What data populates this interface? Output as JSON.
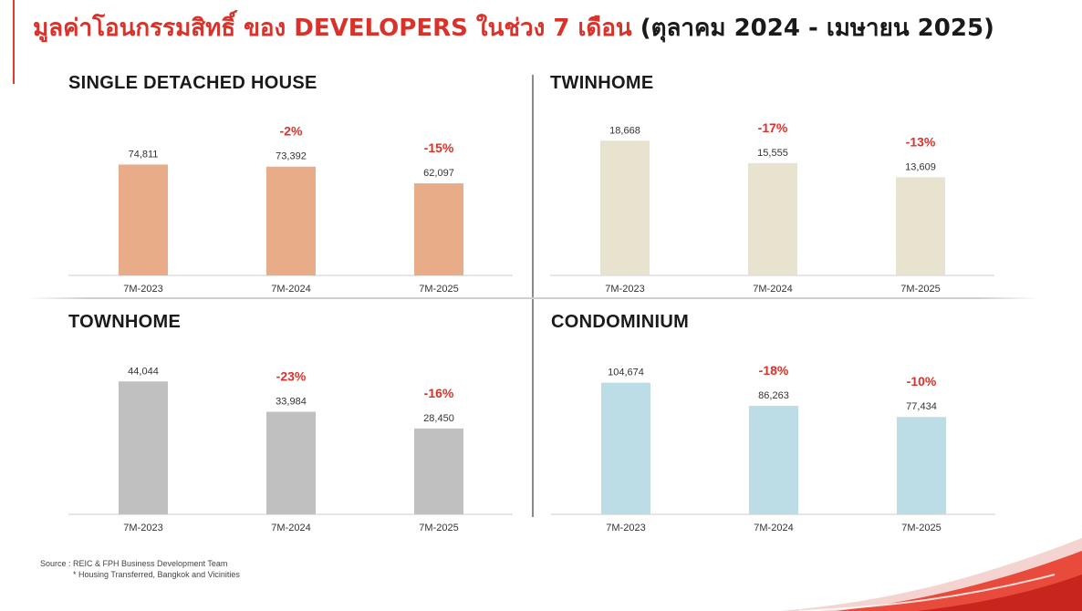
{
  "page": {
    "title_red": "มูลค่าโอนกรรมสิทธิ์ ของ DEVELOPERS ในช่วง 7 เดือน",
    "title_dark": "(ตุลาคม 2024 - เมษายน 2025)"
  },
  "source": {
    "line1": "Source : REIC & FPH Business Development Team",
    "line2": "* Housing Transferred, Bangkok and Vicinities"
  },
  "colors": {
    "accent": "#d9322a",
    "single_detached": "#e8ac89",
    "twinhome": "#e7e3cf",
    "townhome": "#c0c0c0",
    "condominium": "#bddde6"
  },
  "chart_data": [
    {
      "type": "bar",
      "title": "SINGLE DETACHED HOUSE",
      "categories": [
        "7M-2023",
        "7M-2024",
        "7M-2025"
      ],
      "values": [
        74811,
        73392,
        62097
      ],
      "value_labels": [
        "74,811",
        "73,392",
        "62,097"
      ],
      "change_labels": [
        "",
        "-2%",
        "-15%"
      ],
      "color": "#e8ac89",
      "ylim": [
        0,
        112000
      ],
      "xlabel": "",
      "ylabel": "",
      "grid": false
    },
    {
      "type": "bar",
      "title": "TWINHOME",
      "categories": [
        "7M-2023",
        "7M-2024",
        "7M-2025"
      ],
      "values": [
        18668,
        15555,
        13609
      ],
      "value_labels": [
        "18,668",
        "15,555",
        "13,609"
      ],
      "change_labels": [
        "",
        "-17%",
        "-13%"
      ],
      "color": "#e7e3cf",
      "ylim": [
        0,
        23000
      ],
      "xlabel": "",
      "ylabel": "",
      "grid": false
    },
    {
      "type": "bar",
      "title": "TOWNHOME",
      "categories": [
        "7M-2023",
        "7M-2024",
        "7M-2025"
      ],
      "values": [
        44044,
        33984,
        28450
      ],
      "value_labels": [
        "44,044",
        "33,984",
        "28,450"
      ],
      "change_labels": [
        "",
        "-23%",
        "-16%"
      ],
      "color": "#c0c0c0",
      "ylim": [
        0,
        55000
      ],
      "xlabel": "",
      "ylabel": "",
      "grid": false
    },
    {
      "type": "bar",
      "title": "CONDOMINIUM",
      "categories": [
        "7M-2023",
        "7M-2024",
        "7M-2025"
      ],
      "values": [
        104674,
        86263,
        77434
      ],
      "value_labels": [
        "104,674",
        "86,263",
        "77,434"
      ],
      "change_labels": [
        "",
        "-18%",
        "-10%"
      ],
      "color": "#bddde6",
      "ylim": [
        0,
        132000
      ],
      "xlabel": "",
      "ylabel": "",
      "grid": false
    }
  ]
}
